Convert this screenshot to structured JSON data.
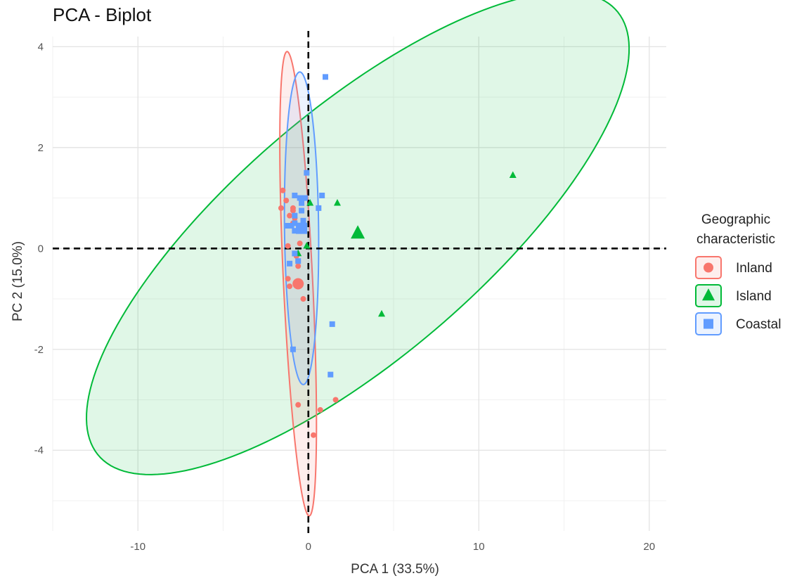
{
  "chart_data": {
    "type": "scatter",
    "title": "PCA - Biplot",
    "xlabel": "PCA 1 (33.5%)",
    "ylabel": "PC 2 (15.0%)",
    "xlim": [
      -15,
      21
    ],
    "ylim": [
      -5.6,
      4.2
    ],
    "xticks": [
      -10,
      0,
      10,
      20
    ],
    "xtick_labels": [
      "-10",
      "0",
      "10",
      "20"
    ],
    "yticks": [
      -4,
      -2,
      0,
      2,
      4
    ],
    "ytick_labels": [
      "-4",
      "-2",
      "0",
      "2",
      "4"
    ],
    "x_minor_gridlines": [
      -15,
      -5,
      5,
      15
    ],
    "y_minor_gridlines": [
      -5,
      -3,
      -1,
      1,
      3
    ],
    "grid": true,
    "reference_lines": {
      "x": 0,
      "y": 0,
      "style": "dashed"
    },
    "legend": {
      "title": "Geographic characteristic",
      "title_lines": [
        "Geographic",
        "characteristic"
      ],
      "position": "right"
    },
    "series": [
      {
        "name": "Inland",
        "color": "#F8766D",
        "marker": "circle",
        "points": [
          [
            -1.5,
            1.15
          ],
          [
            -1.3,
            0.95
          ],
          [
            -1.6,
            0.8
          ],
          [
            -0.9,
            0.8
          ],
          [
            -0.9,
            0.75
          ],
          [
            -1.1,
            0.65
          ],
          [
            -0.8,
            0.6
          ],
          [
            -0.9,
            0.5
          ],
          [
            -0.5,
            0.1
          ],
          [
            -1.2,
            0.05
          ],
          [
            -0.7,
            -0.15
          ],
          [
            -0.6,
            -0.25
          ],
          [
            -0.6,
            -0.35
          ],
          [
            -1.2,
            -0.6
          ],
          [
            -1.1,
            -0.75
          ],
          [
            -0.3,
            -1.0
          ],
          [
            -0.6,
            -3.1
          ],
          [
            0.7,
            -3.2
          ],
          [
            1.6,
            -3.0
          ],
          [
            0.3,
            -3.7
          ]
        ],
        "centroid": [
          -0.6,
          -0.7
        ],
        "ellipse": {
          "center": [
            -0.6,
            -0.7
          ],
          "semi_major": 4.65,
          "semi_minor": 0.85,
          "angle_deg": -81.7
        }
      },
      {
        "name": "Island",
        "color": "#00BA38",
        "marker": "triangle",
        "points": [
          [
            12.0,
            1.45
          ],
          [
            1.7,
            0.9
          ],
          [
            0.1,
            0.9
          ],
          [
            -0.1,
            0.05
          ],
          [
            -0.6,
            -0.1
          ],
          [
            4.3,
            -1.3
          ]
        ],
        "centroid": [
          2.9,
          0.3
        ],
        "ellipse": {
          "center": [
            2.9,
            0.3
          ],
          "semi_major": 16.35,
          "semi_minor": 3.0,
          "angle_deg": 13.4
        }
      },
      {
        "name": "Coastal",
        "color": "#619CFF",
        "marker": "square",
        "points": [
          [
            1.0,
            3.4
          ],
          [
            -0.1,
            1.5
          ],
          [
            -0.8,
            1.05
          ],
          [
            -0.5,
            1.0
          ],
          [
            -0.2,
            1.0
          ],
          [
            0.8,
            1.05
          ],
          [
            -0.4,
            0.9
          ],
          [
            0.6,
            0.8
          ],
          [
            -0.4,
            0.75
          ],
          [
            -0.8,
            0.65
          ],
          [
            -0.3,
            0.55
          ],
          [
            -0.8,
            0.5
          ],
          [
            -1.0,
            0.45
          ],
          [
            -1.2,
            0.45
          ],
          [
            -0.8,
            0.35
          ],
          [
            -0.8,
            -0.1
          ],
          [
            -0.6,
            -0.25
          ],
          [
            -1.1,
            -0.3
          ],
          [
            1.4,
            -1.5
          ],
          [
            1.3,
            -2.5
          ],
          [
            -0.9,
            -2.0
          ]
        ],
        "centroid": [
          -0.4,
          0.4
        ],
        "ellipse": {
          "center": [
            -0.4,
            0.4
          ],
          "semi_major": 3.1,
          "semi_minor": 1.0,
          "angle_deg": -87.9
        }
      }
    ]
  }
}
